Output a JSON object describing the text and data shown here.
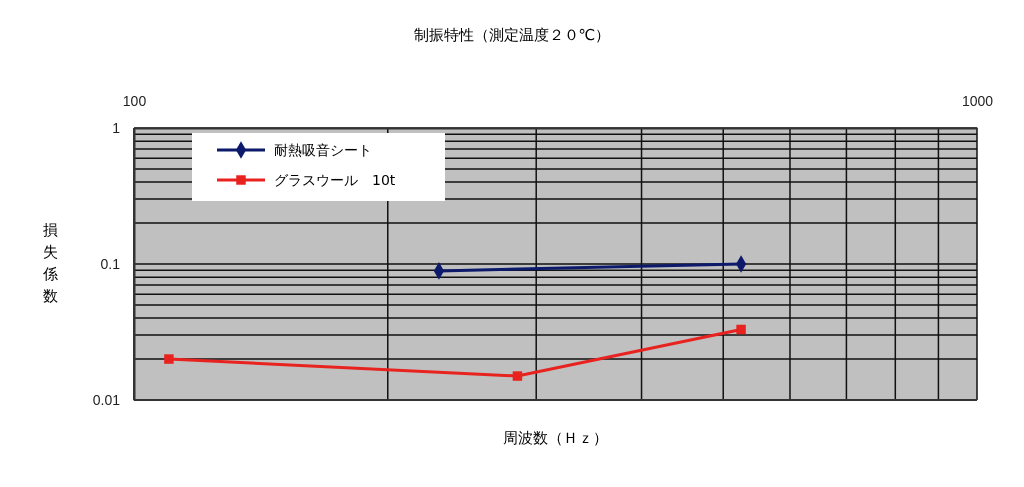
{
  "chart_data": {
    "type": "line",
    "title": "制振特性（測定温度２０℃）",
    "xlabel": "周波数（Ｈｚ）",
    "ylabel": "損失係数",
    "log": "xy",
    "xlim": [
      100,
      1000
    ],
    "ylim": [
      0.01,
      1
    ],
    "xticks": [
      100,
      {
        "value": 200,
        "label": null
      },
      {
        "value": 300,
        "label": null
      },
      {
        "value": 400,
        "label": null
      },
      {
        "value": 500,
        "label": null
      },
      {
        "value": 600,
        "label": null
      },
      {
        "value": 700,
        "label": null
      },
      {
        "value": 800,
        "label": null
      },
      {
        "value": 900,
        "label": null
      },
      1000
    ],
    "yticks": [
      {
        "value": 0.01,
        "label": "0.01"
      },
      {
        "value": 0.02,
        "label": null
      },
      {
        "value": 0.03,
        "label": null
      },
      {
        "value": 0.04,
        "label": null
      },
      {
        "value": 0.05,
        "label": null
      },
      {
        "value": 0.06,
        "label": null
      },
      {
        "value": 0.07,
        "label": null
      },
      {
        "value": 0.08,
        "label": null
      },
      {
        "value": 0.09,
        "label": null
      },
      {
        "value": 0.1,
        "label": "0.1"
      },
      {
        "value": 0.2,
        "label": null
      },
      {
        "value": 0.3,
        "label": null
      },
      {
        "value": 0.4,
        "label": null
      },
      {
        "value": 0.5,
        "label": null
      },
      {
        "value": 0.6,
        "label": null
      },
      {
        "value": 0.7,
        "label": null
      },
      {
        "value": 0.8,
        "label": null
      },
      {
        "value": 0.9,
        "label": null
      },
      {
        "value": 1,
        "label": "1"
      }
    ],
    "grid": true,
    "legend": "top left",
    "series": [
      {
        "name": "耐熱吸音シート",
        "color": "#0d1a6b",
        "marker": "diamond",
        "x": [
          230,
          525
        ],
        "values": [
          0.089,
          0.1
        ]
      },
      {
        "name": "グラスウール　10t",
        "color": "#e8231f",
        "marker": "square",
        "x": [
          110,
          285,
          525
        ],
        "values": [
          0.02,
          0.015,
          0.033
        ]
      }
    ]
  }
}
